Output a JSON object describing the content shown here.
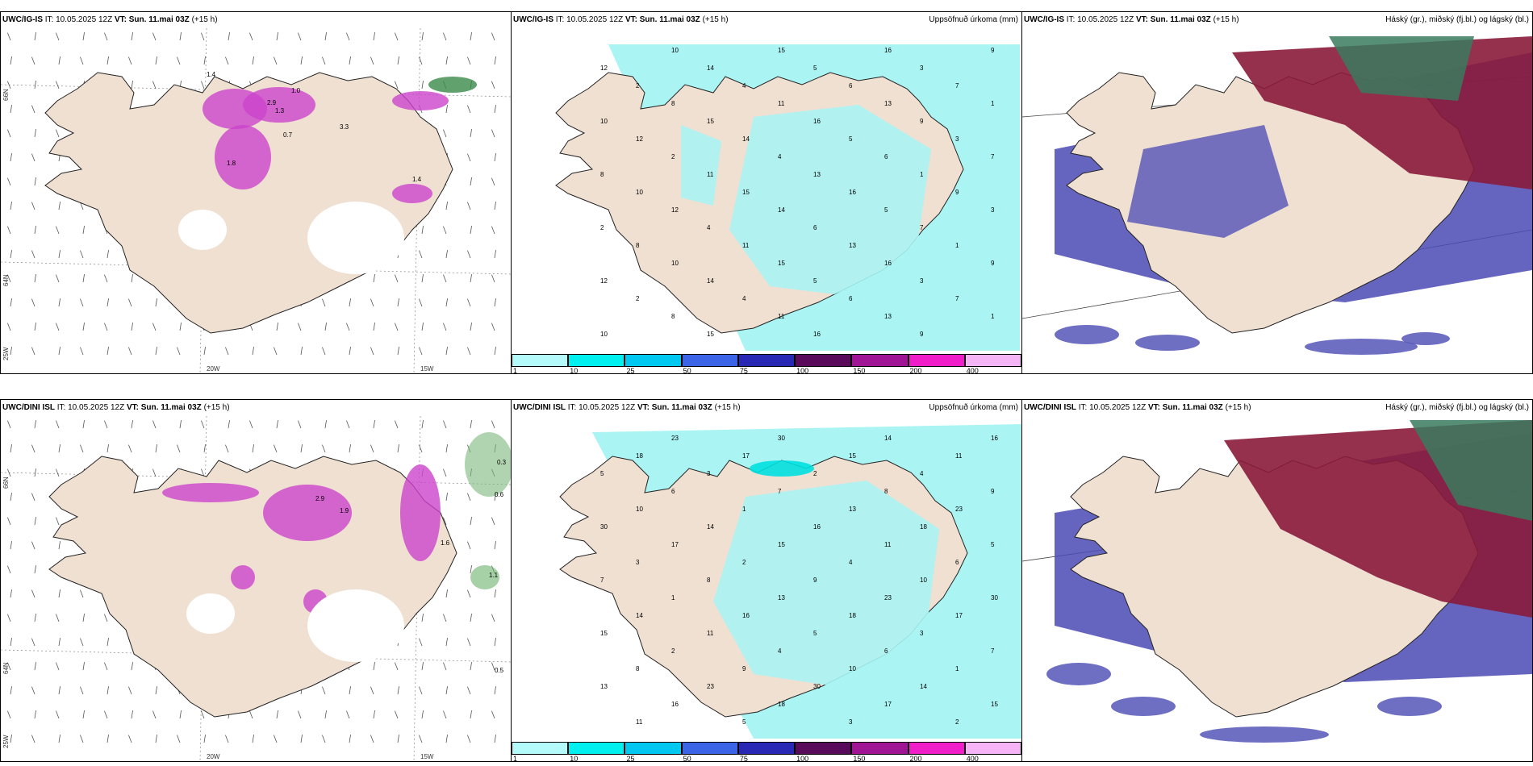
{
  "row1": {
    "model": "UWC/IG-IS",
    "it_label": "IT:",
    "it_value": "10.05.2025 12Z",
    "vt_label": "VT:",
    "vt_value": "Sun. 11.mai 03Z",
    "lead": "(+15 h)"
  },
  "row2": {
    "model": "UWC/DINI ISL",
    "it_label": "IT:",
    "it_value": "10.05.2025 12Z",
    "vt_label": "VT:",
    "vt_value": "Sun. 11.mai 03Z",
    "lead": "(+15 h)"
  },
  "precip_title": "Uppsöfnuð úrkoma (mm)",
  "cloud_title": "Háský (gr.), miðský (fj.bl.) og lágský (bl.)",
  "colorbar": {
    "ticks": [
      "1",
      "10",
      "25",
      "50",
      "75",
      "100",
      "150",
      "200",
      "400"
    ],
    "colors": [
      "#b4fafa",
      "#00f0f0",
      "#00c8f0",
      "#3c64e6",
      "#2828b4",
      "#5a0a5a",
      "#a01496",
      "#f01ec8",
      "#f5b4f5"
    ]
  },
  "axes": {
    "lon_ticks": [
      "20W",
      "15W"
    ],
    "lat_ticks": [
      "66N",
      "64N"
    ],
    "left_lon": "25W"
  },
  "colors": {
    "land": "#efe0d2",
    "coast": "#222222",
    "precip_light": "#aaf4f4",
    "cloud_high": "#3a7a5e",
    "cloud_mid": "#8a1a3a",
    "cloud_low": "#4a4ab4",
    "convective": "#cc44cc"
  },
  "annotations": {
    "p1_values": [
      "1.4",
      "1.0",
      "2.9",
      "0.7",
      "1.3",
      "3.3",
      "1.8"
    ],
    "p4_values": [
      "0.3",
      "0.6",
      "1.1",
      "0.5",
      "2.9",
      "1.9",
      "1.6"
    ],
    "p2_values": [
      "10",
      "15",
      "16",
      "9",
      "12",
      "14",
      "5",
      "3",
      "2",
      "4",
      "6",
      "7",
      "8",
      "11",
      "13",
      "1"
    ],
    "p5_values": [
      "23",
      "30",
      "14",
      "16",
      "18",
      "17",
      "15",
      "11",
      "5",
      "3",
      "2",
      "4",
      "6",
      "7",
      "8",
      "9",
      "10",
      "1",
      "13"
    ]
  }
}
